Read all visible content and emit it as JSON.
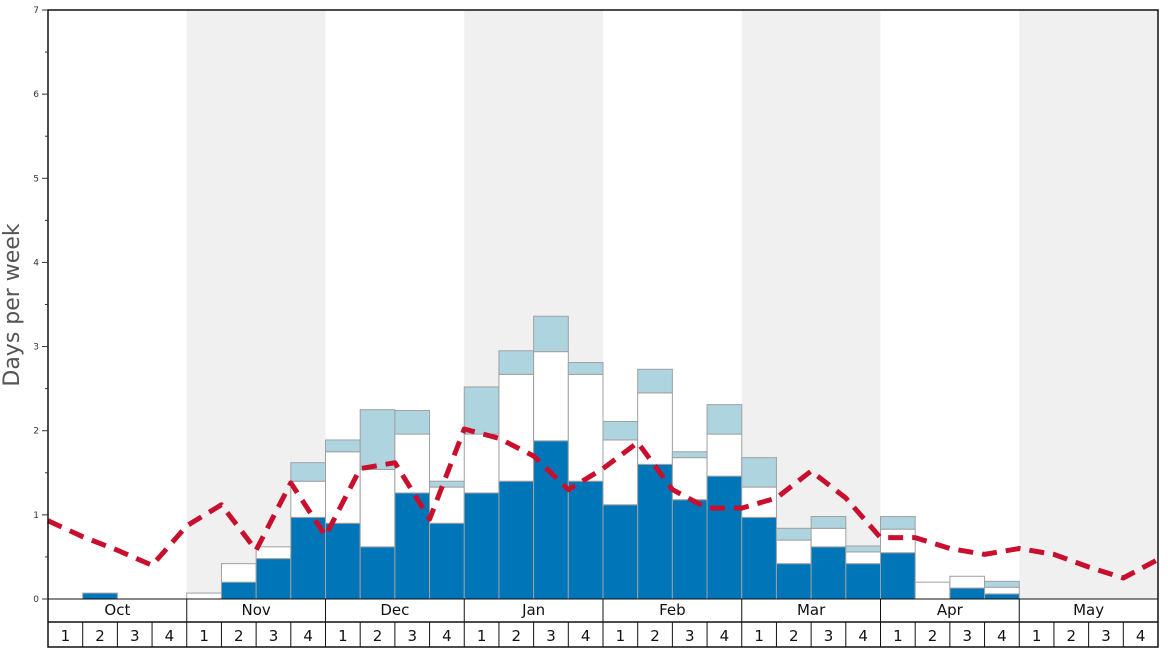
{
  "chart_data": {
    "type": "bar",
    "ylabel": "Days per week",
    "ylim": [
      0,
      7
    ],
    "yticks": [
      "0",
      "1",
      "2",
      "3",
      "4",
      "5",
      "6",
      "7"
    ],
    "months": [
      "Oct",
      "Nov",
      "Dec",
      "Jan",
      "Feb",
      "Mar",
      "Apr",
      "May"
    ],
    "weeks": [
      "1",
      "2",
      "3",
      "4"
    ],
    "stacked": true,
    "colors": {
      "bottom": "#0075b8",
      "middle": "#ffffff",
      "top": "#aed4e0",
      "line": "#c8102e",
      "shade": "#f0f0f0"
    },
    "series": [
      {
        "values": [
          0,
          0.07,
          0,
          0,
          0,
          0.2,
          0.48,
          0.97,
          0.9,
          0.62,
          1.26,
          0.9,
          1.26,
          1.4,
          1.88,
          1.4,
          1.12,
          1.6,
          1.18,
          1.46,
          0.97,
          0.42,
          0.62,
          0.42,
          0.55,
          0,
          0.13,
          0.06,
          0,
          0,
          0,
          0
        ]
      },
      {
        "values": [
          0,
          0,
          0,
          0,
          0.07,
          0.22,
          0.14,
          0.43,
          0.85,
          0.92,
          0.7,
          0.43,
          0.7,
          1.27,
          1.06,
          1.27,
          0.77,
          0.85,
          0.5,
          0.5,
          0.36,
          0.28,
          0.22,
          0.14,
          0.28,
          0.2,
          0.14,
          0.08,
          0,
          0,
          0,
          0
        ]
      },
      {
        "values": [
          0,
          0,
          0,
          0,
          0,
          0,
          0,
          0.22,
          0.14,
          0.71,
          0.28,
          0.07,
          0.56,
          0.28,
          0.42,
          0.14,
          0.22,
          0.28,
          0.07,
          0.35,
          0.35,
          0.14,
          0.14,
          0.07,
          0.15,
          0,
          0,
          0.07,
          0,
          0,
          0,
          0
        ]
      }
    ],
    "trend": [
      0.93,
      0.74,
      0.58,
      0.4,
      0.87,
      1.12,
      0.58,
      1.38,
      0.75,
      1.55,
      1.62,
      0.95,
      2.02,
      1.91,
      1.7,
      1.3,
      1.55,
      1.86,
      1.3,
      1.08,
      1.08,
      1.2,
      1.52,
      1.2,
      0.73,
      0.73,
      0.6,
      0.53,
      0.6,
      0.53,
      0.38,
      0.25,
      0.47
    ]
  }
}
